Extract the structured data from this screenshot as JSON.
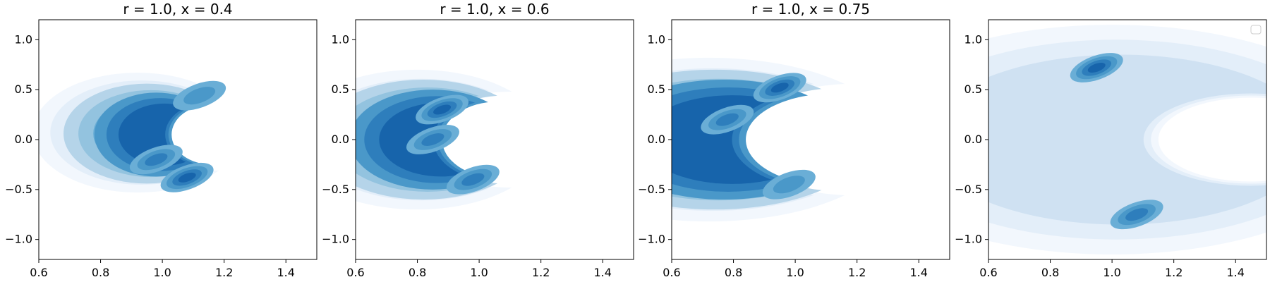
{
  "chart_data": [
    {
      "type": "contour",
      "title": "r = 1.0, x = 0.4",
      "xlim": [
        0.6,
        1.5
      ],
      "ylim": [
        -1.2,
        1.2
      ],
      "xticks": [
        0.6,
        0.8,
        1.0,
        1.2,
        1.4
      ],
      "xtick_labels": [
        "0.6",
        "0.8",
        "1.0",
        "1.2",
        "1.4"
      ],
      "yticks": [
        1.0,
        0.5,
        0.0,
        -0.5,
        -1.0
      ],
      "ytick_labels": [
        "1.0",
        "0.5",
        "0.0",
        "−0.5",
        "−1.0"
      ],
      "grid": false,
      "kde": {
        "shape": "crescent",
        "bands": [
          {
            "x": 0.92,
            "y": 0.07,
            "rx": 0.34,
            "ry": 0.6,
            "inner_x": 1.18,
            "inner_rx": 0.2,
            "inner_ry": 0.38
          },
          {
            "x": 0.95,
            "y": 0.06,
            "rx": 0.27,
            "ry": 0.5,
            "inner_x": 1.17,
            "inner_rx": 0.17,
            "inner_ry": 0.34
          },
          {
            "x": 0.98,
            "y": 0.05,
            "rx": 0.2,
            "ry": 0.42,
            "inner_x": 1.16,
            "inner_rx": 0.13,
            "inner_ry": 0.3
          }
        ],
        "peaks": [
          {
            "x": 1.08,
            "y": -0.38,
            "level": 4
          },
          {
            "x": 0.98,
            "y": -0.2,
            "level": 3
          },
          {
            "x": 1.12,
            "y": 0.44,
            "level": 2
          }
        ]
      }
    },
    {
      "type": "contour",
      "title": "r = 1.0, x = 0.6",
      "xlim": [
        0.6,
        1.5
      ],
      "ylim": [
        -1.2,
        1.2
      ],
      "xticks": [
        0.6,
        0.8,
        1.0,
        1.2,
        1.4
      ],
      "xtick_labels": [
        "0.6",
        "0.8",
        "1.0",
        "1.2",
        "1.4"
      ],
      "yticks": [
        1.0,
        0.5,
        0.0,
        -0.5,
        -1.0
      ],
      "ytick_labels": [
        "1.0",
        "0.5",
        "0.0",
        "−0.5",
        "−1.0"
      ],
      "grid": false,
      "kde": {
        "shape": "crescent",
        "bands": [
          {
            "x": 0.8,
            "y": 0.0,
            "rx": 0.42,
            "ry": 0.7,
            "inner_x": 1.1,
            "inner_rx": 0.28,
            "inner_ry": 0.48
          },
          {
            "x": 0.82,
            "y": 0.0,
            "rx": 0.35,
            "ry": 0.6,
            "inner_x": 1.08,
            "inner_rx": 0.23,
            "inner_ry": 0.44
          },
          {
            "x": 0.85,
            "y": 0.0,
            "rx": 0.27,
            "ry": 0.5,
            "inner_x": 1.06,
            "inner_rx": 0.18,
            "inner_ry": 0.38
          }
        ],
        "peaks": [
          {
            "x": 0.88,
            "y": 0.3,
            "level": 4
          },
          {
            "x": 0.85,
            "y": 0.0,
            "level": 3
          },
          {
            "x": 0.98,
            "y": -0.4,
            "level": 3
          }
        ]
      }
    },
    {
      "type": "contour",
      "title": "r = 1.0, x = 0.75",
      "xlim": [
        0.6,
        1.5
      ],
      "ylim": [
        -1.2,
        1.2
      ],
      "xticks": [
        0.6,
        0.8,
        1.0,
        1.2,
        1.4
      ],
      "xtick_labels": [
        "0.6",
        "0.8",
        "1.0",
        "1.2",
        "1.4"
      ],
      "yticks": [
        1.0,
        0.5,
        0.0,
        -0.5,
        -1.0
      ],
      "ytick_labels": [
        "1.0",
        "0.5",
        "0.0",
        "−0.5",
        "−1.0"
      ],
      "grid": false,
      "kde": {
        "shape": "crescent",
        "bands": [
          {
            "x": 0.72,
            "y": 0.0,
            "rx": 0.6,
            "ry": 0.82,
            "inner_x": 1.2,
            "inner_rx": 0.4,
            "inner_ry": 0.56
          },
          {
            "x": 0.74,
            "y": 0.0,
            "rx": 0.5,
            "ry": 0.7,
            "inner_x": 1.16,
            "inner_rx": 0.34,
            "inner_ry": 0.52
          },
          {
            "x": 0.77,
            "y": 0.0,
            "rx": 0.4,
            "ry": 0.6,
            "inner_x": 1.12,
            "inner_rx": 0.28,
            "inner_ry": 0.46
          }
        ],
        "peaks": [
          {
            "x": 0.95,
            "y": 0.52,
            "level": 4
          },
          {
            "x": 0.78,
            "y": 0.2,
            "level": 3
          },
          {
            "x": 0.98,
            "y": -0.45,
            "level": 2
          }
        ]
      }
    },
    {
      "type": "contour",
      "title": "",
      "xlim": [
        0.6,
        1.5
      ],
      "ylim": [
        -1.2,
        1.2
      ],
      "xticks": [
        0.6,
        0.8,
        1.0,
        1.2,
        1.4
      ],
      "xtick_labels": [
        "0.6",
        "0.8",
        "1.0",
        "1.2",
        "1.4"
      ],
      "yticks": [
        1.0,
        0.5,
        0.0,
        -0.5,
        -1.0
      ],
      "ytick_labels": [
        "1.0",
        "0.5",
        "0.0",
        "−0.5",
        "−1.0"
      ],
      "grid": false,
      "legend": "top-right (empty)",
      "kde": {
        "shape": "two-lobe",
        "bands": [
          {
            "x": 1.0,
            "y": 0.0,
            "rx": 0.85,
            "ry": 1.15,
            "inner_x": 1.45,
            "inner_rx": 0.3,
            "inner_ry": 0.42
          }
        ],
        "peaks": [
          {
            "x": 0.95,
            "y": 0.72,
            "level": 4
          },
          {
            "x": 1.08,
            "y": -0.75,
            "level": 3
          }
        ]
      }
    }
  ],
  "colors": {
    "levels": [
      "#f2f7fd",
      "#e3eef9",
      "#cfe1f2",
      "#b5d4e9",
      "#93c3df",
      "#6aaed6",
      "#4a98c9",
      "#2e7ebc",
      "#1764ab"
    ],
    "axes": "#000000"
  }
}
